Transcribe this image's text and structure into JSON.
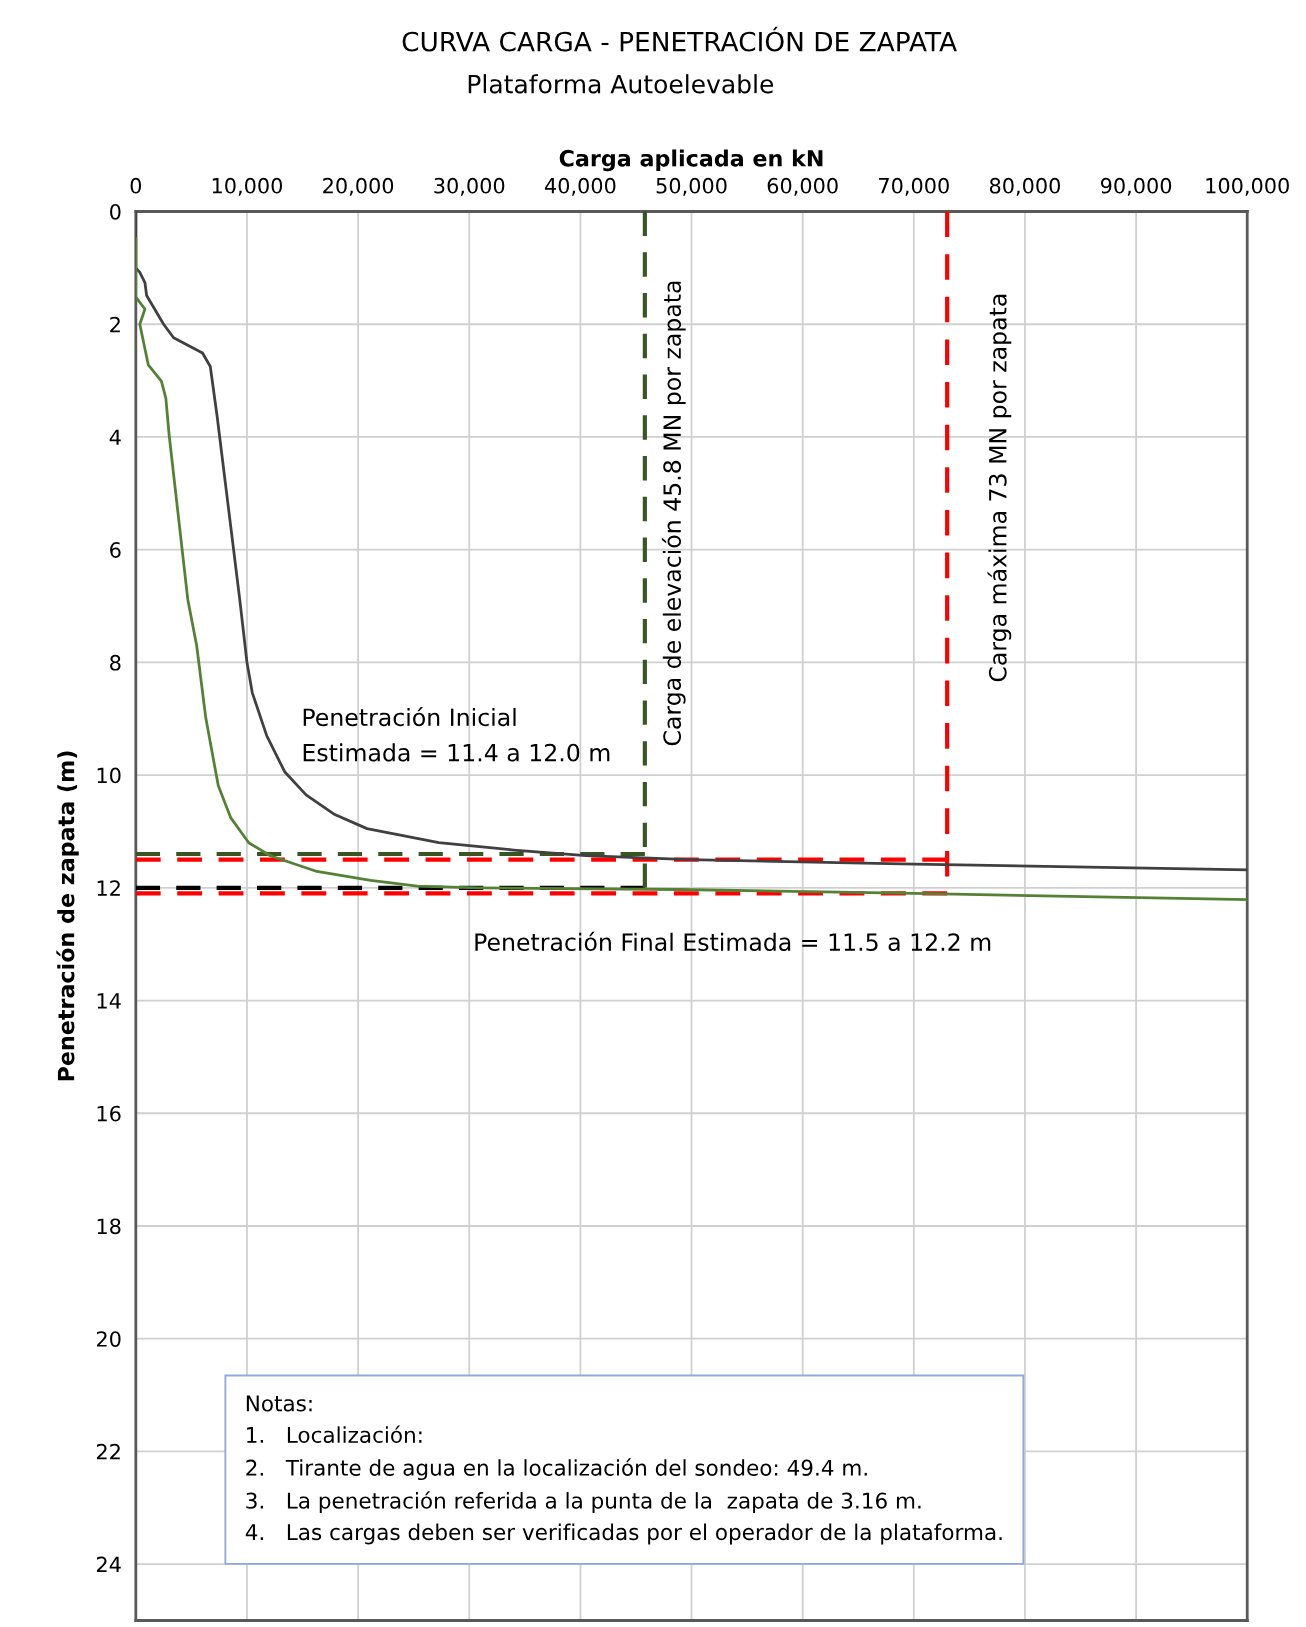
{
  "chart_data": {
    "type": "line",
    "title": "CURVA CARGA - PENETRACIÓN DE ZAPATA",
    "subtitle": "Plataforma Autoelevable",
    "xlabel": "Carga aplicada en kN",
    "ylabel": "Penetración de zapata (m)",
    "xlim": [
      0,
      100000
    ],
    "xticks": [
      0,
      {
        "value": 10000,
        "label": "10,000"
      },
      {
        "value": 20000,
        "label": "20,000"
      },
      {
        "value": 30000,
        "label": "30,000"
      },
      {
        "value": 40000,
        "label": "40,000"
      },
      {
        "value": 50000,
        "label": "50,000"
      },
      {
        "value": 60000,
        "label": "60,000"
      },
      {
        "value": 70000,
        "label": "70,000"
      },
      {
        "value": 80000,
        "label": "80,000"
      },
      {
        "value": 90000,
        "label": "90,000"
      },
      {
        "value": 100000,
        "label": "100,000"
      }
    ],
    "ylim": [
      25,
      0
    ],
    "yticks": [
      0,
      2,
      4,
      6,
      8,
      10,
      12,
      14,
      16,
      18,
      20,
      22,
      24
    ],
    "grid": true,
    "marker": "none",
    "series": [
      {
        "color": "#404040",
        "line_style": "solid",
        "x": [
          0,
          0,
          360,
          820,
          970,
          2500,
          3400,
          6000,
          6700,
          7300,
          9355,
          10000,
          10480,
          11775,
          13390,
          15320,
          17900,
          20800,
          27260,
          34000,
          40500,
          49760,
          70080,
          100000
        ],
        "values": [
          0,
          1.0,
          1.08,
          1.26,
          1.49,
          2.0,
          2.24,
          2.51,
          2.75,
          3.61,
          6.89,
          8.0,
          8.54,
          9.3,
          9.94,
          10.35,
          10.7,
          10.95,
          11.2,
          11.33,
          11.43,
          11.5,
          11.58,
          11.68
        ]
      },
      {
        "color": "#548235",
        "line_style": "solid",
        "x": [
          0,
          0,
          820,
          360,
          1120,
          2300,
          2700,
          3000,
          4680,
          5480,
          6290,
          7420,
          8550,
          10160,
          12100,
          16290,
          21130,
          25320,
          30800,
          48900,
          70080,
          100000
        ],
        "values": [
          0.48,
          1.52,
          1.73,
          2.0,
          2.72,
          3.01,
          3.31,
          3.97,
          6.89,
          7.71,
          8.98,
          10.19,
          10.76,
          11.2,
          11.43,
          11.71,
          11.87,
          11.97,
          12.0,
          12.03,
          12.1,
          12.21
        ]
      },
      {
        "color": "#375623",
        "line_style": "dashed",
        "x": [
          0,
          45800
        ],
        "values": [
          11.4,
          11.4
        ]
      },
      {
        "color": "#ff0000",
        "line_style": "dashed",
        "x": [
          0,
          73000
        ],
        "values": [
          11.5,
          11.5
        ]
      },
      {
        "color": "#000000",
        "line_style": "dashed",
        "x": [
          0,
          45800
        ],
        "values": [
          12.0,
          12.0
        ]
      },
      {
        "color": "#ff0000",
        "line_style": "dashed",
        "x": [
          0,
          73000
        ],
        "values": [
          12.1,
          12.1
        ]
      },
      {
        "color": "#375623",
        "line_style": "dashed",
        "x": [
          45800,
          45800
        ],
        "values": [
          0,
          12.0
        ]
      },
      {
        "color": "#ff0000",
        "line_style": "dashed",
        "x": [
          73000,
          73000
        ],
        "values": [
          0,
          11.8
        ]
      }
    ],
    "annotations": [
      "Carga de elevación 45.8 MN por zapata",
      "Carga máxima 73 MN por zapata",
      "Penetración Inicial\nEstimada = 11.4 a 12.0 m",
      "Penetración Final Estimada = 11.5 a 12.2 m",
      "Notas:\n1.   Localización:\n2.   Tirante de agua en la localización del sondeo: 49.4 m.\n3.   La penetración referida a la punta de la  zapata de 3.16 m.\n4.   Las cargas deben ser verificadas por el operador de la plataforma."
    ]
  }
}
